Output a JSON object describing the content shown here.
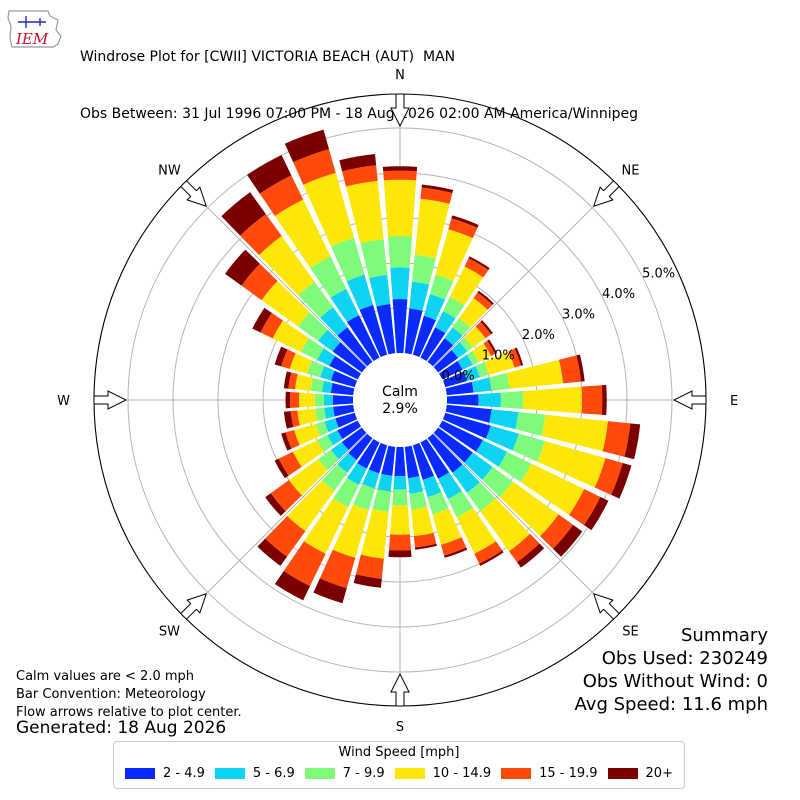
{
  "header": {
    "logo_text": "IEM",
    "title": "Windrose Plot for [CWII] VICTORIA BEACH (AUT)  MAN",
    "subtitle": "Obs Between: 31 Jul 1996 07:00 PM - 18 Aug 2026 02:00 AM America/Winnipeg"
  },
  "notes": {
    "calm": "Calm values are < 2.0 mph",
    "convention": "Bar Convention: Meteorology",
    "flow": "Flow arrows relative to plot center.",
    "generated": "Generated: 18 Aug 2026"
  },
  "summary": {
    "title": "Summary",
    "obs_used": "Obs Used: 230249",
    "obs_without_wind": "Obs Without Wind: 0",
    "avg_speed": "Avg Speed: 11.6 mph"
  },
  "legend": {
    "title": "Wind Speed [mph]",
    "items": [
      {
        "label": "2 - 4.9",
        "color": "#0a2bff"
      },
      {
        "label": "5 - 6.9",
        "color": "#0fd3f3"
      },
      {
        "label": "7 - 9.9",
        "color": "#7efb7a"
      },
      {
        "label": "10 - 14.9",
        "color": "#fde70a"
      },
      {
        "label": "15 - 19.9",
        "color": "#ff4a0b"
      },
      {
        "label": "20+",
        "color": "#7a0000"
      }
    ]
  },
  "chart_data": {
    "type": "windrose",
    "calm_label": "Calm",
    "calm_value": "2.9%",
    "radial_ticks": [
      "0.0%",
      "1.0%",
      "2.0%",
      "3.0%",
      "4.0%",
      "5.0%"
    ],
    "radial_range": [
      0,
      5.5
    ],
    "direction_labels": [
      "N",
      "NE",
      "E",
      "SE",
      "S",
      "SW",
      "W",
      "NW"
    ],
    "direction_step_deg": 10,
    "bins": [
      "2 - 4.9",
      "5 - 6.9",
      "7 - 9.9",
      "10 - 14.9",
      "15 - 19.9",
      "20+"
    ],
    "colors": [
      "#0a2bff",
      "#0fd3f3",
      "#7efb7a",
      "#fde70a",
      "#ff4a0b",
      "#7a0000"
    ],
    "directions": [
      {
        "dir": 0,
        "cum": [
          1.2,
          1.9,
          2.6,
          3.85,
          4.05,
          4.15
        ]
      },
      {
        "dir": 10,
        "cum": [
          1.0,
          1.6,
          2.2,
          3.45,
          3.7,
          3.77
        ]
      },
      {
        "dir": 20,
        "cum": [
          0.9,
          1.4,
          1.85,
          2.9,
          3.15,
          3.22
        ]
      },
      {
        "dir": 30,
        "cum": [
          0.75,
          1.15,
          1.5,
          2.25,
          2.45,
          2.5
        ]
      },
      {
        "dir": 40,
        "cum": [
          0.65,
          0.95,
          1.2,
          1.75,
          1.9,
          1.95
        ]
      },
      {
        "dir": 50,
        "cum": [
          0.55,
          0.8,
          0.95,
          1.3,
          1.45,
          1.5
        ]
      },
      {
        "dir": 60,
        "cum": [
          0.5,
          0.75,
          0.9,
          1.2,
          1.3,
          1.35
        ]
      },
      {
        "dir": 70,
        "cum": [
          0.5,
          0.8,
          1.0,
          1.6,
          1.75,
          1.8
        ]
      },
      {
        "dir": 80,
        "cum": [
          0.6,
          1.0,
          1.4,
          2.6,
          3.0,
          3.08
        ]
      },
      {
        "dir": 90,
        "cum": [
          0.7,
          1.2,
          1.7,
          3.0,
          3.45,
          3.55
        ]
      },
      {
        "dir": 100,
        "cum": [
          1.0,
          1.6,
          2.2,
          3.6,
          4.1,
          4.32
        ]
      },
      {
        "dir": 110,
        "cum": [
          1.05,
          1.7,
          2.3,
          3.7,
          4.1,
          4.3
        ]
      },
      {
        "dir": 120,
        "cum": [
          1.0,
          1.6,
          2.2,
          3.5,
          3.9,
          4.1
        ]
      },
      {
        "dir": 130,
        "cum": [
          0.95,
          1.5,
          2.05,
          3.3,
          3.7,
          3.95
        ]
      },
      {
        "dir": 140,
        "cum": [
          0.95,
          1.5,
          2.0,
          3.1,
          3.4,
          3.55
        ]
      },
      {
        "dir": 150,
        "cum": [
          0.9,
          1.4,
          1.85,
          2.75,
          3.0,
          3.05
        ]
      },
      {
        "dir": 160,
        "cum": [
          0.8,
          1.2,
          1.6,
          2.3,
          2.55,
          2.6
        ]
      },
      {
        "dir": 170,
        "cum": [
          0.7,
          1.05,
          1.4,
          2.0,
          2.25,
          2.3
        ]
      },
      {
        "dir": 180,
        "cum": [
          0.65,
          0.95,
          1.3,
          1.95,
          2.3,
          2.45
        ]
      },
      {
        "dir": 190,
        "cum": [
          0.65,
          1.0,
          1.45,
          2.5,
          2.95,
          3.15
        ]
      },
      {
        "dir": 200,
        "cum": [
          0.65,
          1.0,
          1.5,
          2.6,
          3.3,
          3.65
        ]
      },
      {
        "dir": 210,
        "cum": [
          0.65,
          1.05,
          1.6,
          2.75,
          3.55,
          3.9
        ]
      },
      {
        "dir": 220,
        "cum": [
          0.6,
          0.95,
          1.45,
          2.55,
          3.25,
          3.5
        ]
      },
      {
        "dir": 230,
        "cum": [
          0.55,
          0.85,
          1.2,
          2.0,
          2.5,
          2.65
        ]
      },
      {
        "dir": 240,
        "cum": [
          0.5,
          0.75,
          1.0,
          1.6,
          1.95,
          2.05
        ]
      },
      {
        "dir": 250,
        "cum": [
          0.45,
          0.7,
          0.9,
          1.4,
          1.6,
          1.7
        ]
      },
      {
        "dir": 260,
        "cum": [
          0.45,
          0.65,
          0.85,
          1.25,
          1.4,
          1.55
        ]
      },
      {
        "dir": 270,
        "cum": [
          0.45,
          0.65,
          0.85,
          1.2,
          1.4,
          1.5
        ]
      },
      {
        "dir": 280,
        "cum": [
          0.5,
          0.7,
          0.95,
          1.3,
          1.45,
          1.55
        ]
      },
      {
        "dir": 290,
        "cum": [
          0.55,
          0.8,
          1.1,
          1.5,
          1.7,
          1.85
        ]
      },
      {
        "dir": 300,
        "cum": [
          0.7,
          1.0,
          1.4,
          2.1,
          2.4,
          2.6
        ]
      },
      {
        "dir": 310,
        "cum": [
          0.8,
          1.2,
          1.75,
          2.75,
          3.3,
          3.75
        ]
      },
      {
        "dir": 320,
        "cum": [
          0.95,
          1.5,
          2.2,
          3.45,
          4.05,
          4.65
        ]
      },
      {
        "dir": 330,
        "cum": [
          1.05,
          1.7,
          2.5,
          3.9,
          4.5,
          5.0
        ]
      },
      {
        "dir": 340,
        "cum": [
          1.15,
          1.85,
          2.7,
          4.2,
          4.75,
          5.2
        ]
      },
      {
        "dir": 350,
        "cum": [
          1.1,
          1.75,
          2.55,
          3.85,
          4.2,
          4.45
        ]
      }
    ]
  }
}
